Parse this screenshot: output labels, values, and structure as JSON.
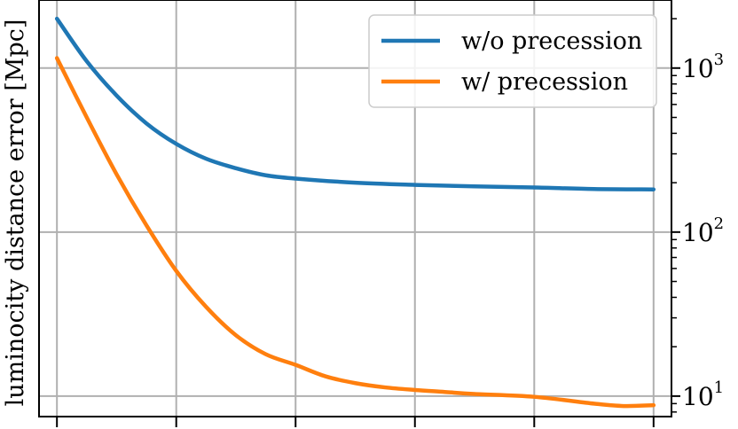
{
  "chart_data": {
    "type": "line",
    "title": "",
    "xlabel": "",
    "ylabel": "luminocity distance error [Mpc]",
    "yscale": "log",
    "ylim": [
      7.5,
      2600
    ],
    "xlim": [
      -0.03,
      1.03
    ],
    "grid": true,
    "legend_position": "top-right",
    "y_tick_labels": [
      {
        "value": 10,
        "base": "10",
        "exp": "1"
      },
      {
        "value": 100,
        "base": "10",
        "exp": "2"
      },
      {
        "value": 1000,
        "base": "10",
        "exp": "3"
      }
    ],
    "x_ticks": [
      0,
      0.2,
      0.4,
      0.6,
      0.8,
      1.0
    ],
    "series": [
      {
        "name": "w/o precession",
        "color": "#1f77b4",
        "x": [
          0,
          0.05,
          0.1,
          0.15,
          0.2,
          0.25,
          0.3,
          0.35,
          0.4,
          0.5,
          0.6,
          0.7,
          0.8,
          0.9,
          1.0
        ],
        "y": [
          2000,
          1100,
          680,
          460,
          345,
          280,
          245,
          222,
          212,
          200,
          194,
          190,
          187,
          183,
          182
        ]
      },
      {
        "name": "w/ precession",
        "color": "#ff7f0e",
        "x": [
          0,
          0.05,
          0.1,
          0.15,
          0.2,
          0.25,
          0.3,
          0.35,
          0.4,
          0.45,
          0.5,
          0.55,
          0.6,
          0.65,
          0.7,
          0.8,
          0.9,
          0.95,
          1.0
        ],
        "y": [
          1150,
          500,
          225,
          110,
          58,
          35,
          23.5,
          18,
          15.5,
          13.2,
          12,
          11.3,
          10.9,
          10.6,
          10.3,
          9.9,
          9.0,
          8.7,
          8.8
        ]
      }
    ]
  }
}
